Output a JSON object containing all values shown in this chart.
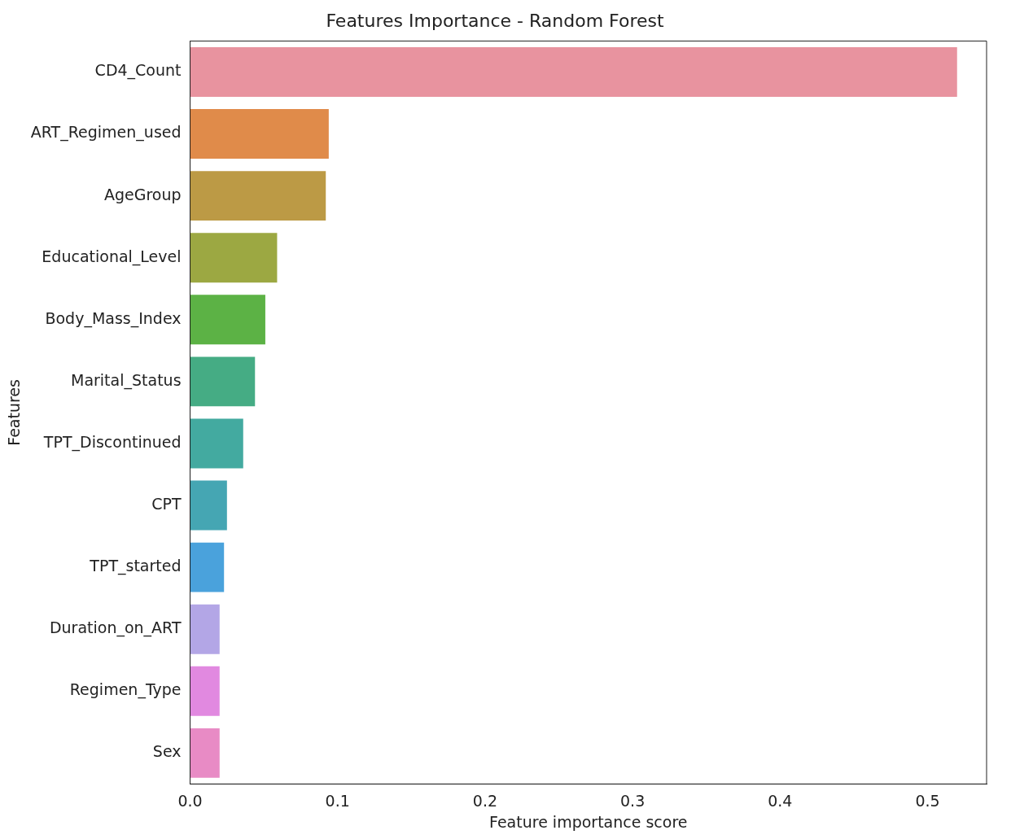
{
  "chart_data": {
    "type": "bar",
    "orientation": "horizontal",
    "title": "Features Importance - Random Forest",
    "xlabel": "Feature importance score",
    "ylabel": "Features",
    "categories": [
      "CD4_Count",
      "ART_Regimen_used",
      "AgeGroup",
      "Educational_Level",
      "Body_Mass_Index",
      "Marital_Status",
      "TPT_Discontinued",
      "CPT",
      "TPT_started",
      "Duration_on_ART",
      "Regimen_Type",
      "Sex"
    ],
    "values": [
      0.52,
      0.094,
      0.092,
      0.059,
      0.051,
      0.044,
      0.036,
      0.025,
      0.023,
      0.02,
      0.02,
      0.02
    ],
    "colors": [
      "#e8939f",
      "#e08b4a",
      "#bc9a45",
      "#9ca842",
      "#5cb245",
      "#45ac84",
      "#43aaa0",
      "#45a6b3",
      "#4aa2dc",
      "#b3a6e6",
      "#e189e0",
      "#e88bc5"
    ],
    "xlim": [
      0,
      0.54
    ],
    "xticks": [
      {
        "value": 0,
        "label": "0.0"
      },
      0.1,
      0.2,
      0.3,
      0.4,
      0.5
    ],
    "grid": false,
    "legend": false
  }
}
